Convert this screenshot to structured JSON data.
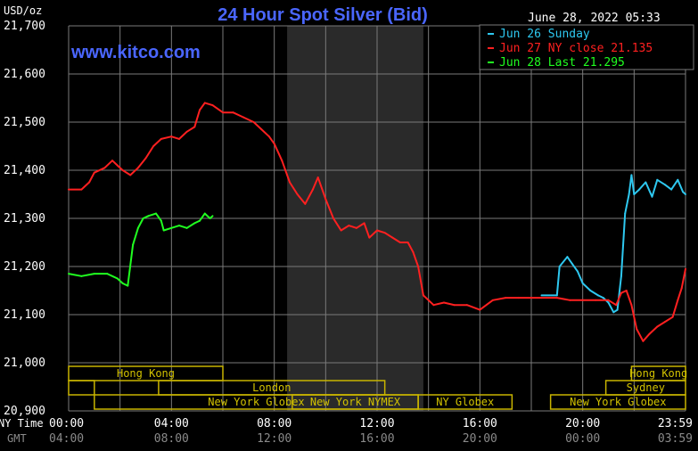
{
  "header": {
    "title": "24 Hour Spot Silver (Bid)",
    "currency_label": "USD/oz",
    "timestamp": "June 28, 2022 05:33",
    "watermark": "www.kitco.com"
  },
  "colors": {
    "background": "#000000",
    "grid": "#7a7a7a",
    "title": "#4a66ff",
    "watermark": "#4a66ff",
    "session_fill": "#c8b400",
    "session_text": "#d2c200",
    "night_band": "#2a2a2a",
    "cyan": "#2ec8f0",
    "red": "#ff2020",
    "green": "#20ff20",
    "axis_text": "#ffffff",
    "gmt_text": "#8a8a8a"
  },
  "legend": {
    "items": [
      {
        "color": "#2ec8f0",
        "label": "Jun 26 Sunday"
      },
      {
        "color": "#ff2020",
        "label": "Jun 27 NY close 21.135"
      },
      {
        "color": "#20ff20",
        "label": "Jun 28 Last 21.295"
      }
    ]
  },
  "sessions": [
    {
      "label": "Hong Kong",
      "start": 0,
      "end": 6,
      "row": 1
    },
    {
      "label": "",
      "start": 0,
      "end": 1,
      "row": 2
    },
    {
      "label": "London",
      "start": 3.5,
      "end": 12.3,
      "row": 2
    },
    {
      "label": "New York Globex",
      "start": 1,
      "end": 13.6,
      "row": 3
    },
    {
      "label": "New York NYMEX",
      "start": 8.7,
      "end": 13.6,
      "row": 3
    },
    {
      "label": "NY Globex",
      "start": 13.6,
      "end": 17.25,
      "row": 3
    },
    {
      "label": "Hong Kong",
      "start": 21.9,
      "end": 24,
      "row": 1
    },
    {
      "label": "Sydney",
      "start": 20.9,
      "end": 24,
      "row": 2
    },
    {
      "label": "New York Globex",
      "start": 18.75,
      "end": 24,
      "row": 3
    }
  ],
  "axis_rows": {
    "ny_label": "NY Time",
    "gmt_label": "GMT",
    "ny_ticks": [
      "00:00",
      "04:00",
      "08:00",
      "12:00",
      "16:00",
      "20:00",
      "23:59"
    ],
    "gmt_ticks": [
      "04:00",
      "08:00",
      "12:00",
      "16:00",
      "20:00",
      "00:00",
      "03:59"
    ]
  },
  "chart_data": {
    "type": "line",
    "title": "24 Hour Spot Silver (Bid)",
    "ylabel": "USD/oz",
    "xlabel": "NY Time",
    "ylim": [
      20900,
      21700
    ],
    "yticks": [
      "21,700",
      "21,600",
      "21,500",
      "21,400",
      "21,300",
      "21,200",
      "21,100",
      "21,000",
      "20,900"
    ],
    "xlim": [
      0,
      24
    ],
    "shaded_band": [
      8.5,
      13.8
    ],
    "legend": "top-right",
    "grid": true,
    "series": [
      {
        "name": "Jun 26 Sunday",
        "color": "#2ec8f0",
        "points": [
          [
            18.4,
            21140
          ],
          [
            19.0,
            21140
          ],
          [
            19.1,
            21200
          ],
          [
            19.4,
            21220
          ],
          [
            19.6,
            21205
          ],
          [
            19.8,
            21190
          ],
          [
            20.0,
            21165
          ],
          [
            20.3,
            21150
          ],
          [
            20.6,
            21140
          ],
          [
            20.8,
            21135
          ],
          [
            21.0,
            21125
          ],
          [
            21.2,
            21105
          ],
          [
            21.35,
            21110
          ],
          [
            21.5,
            21180
          ],
          [
            21.65,
            21310
          ],
          [
            21.8,
            21350
          ],
          [
            21.9,
            21390
          ],
          [
            22.0,
            21350
          ],
          [
            22.2,
            21360
          ],
          [
            22.45,
            21375
          ],
          [
            22.7,
            21345
          ],
          [
            22.9,
            21380
          ],
          [
            23.2,
            21370
          ],
          [
            23.45,
            21360
          ],
          [
            23.7,
            21380
          ],
          [
            23.9,
            21355
          ],
          [
            24.0,
            21350
          ]
        ]
      },
      {
        "name": "Jun 27 NY close 21.135",
        "color": "#ff2020",
        "points": [
          [
            0.0,
            21360
          ],
          [
            0.5,
            21360
          ],
          [
            0.8,
            21375
          ],
          [
            1.0,
            21395
          ],
          [
            1.4,
            21405
          ],
          [
            1.7,
            21420
          ],
          [
            1.9,
            21410
          ],
          [
            2.1,
            21400
          ],
          [
            2.4,
            21390
          ],
          [
            2.7,
            21405
          ],
          [
            3.0,
            21425
          ],
          [
            3.3,
            21450
          ],
          [
            3.6,
            21465
          ],
          [
            4.0,
            21470
          ],
          [
            4.3,
            21465
          ],
          [
            4.6,
            21480
          ],
          [
            4.9,
            21490
          ],
          [
            5.1,
            21525
          ],
          [
            5.3,
            21540
          ],
          [
            5.6,
            21535
          ],
          [
            6.0,
            21520
          ],
          [
            6.4,
            21520
          ],
          [
            6.8,
            21510
          ],
          [
            7.2,
            21500
          ],
          [
            7.5,
            21485
          ],
          [
            7.8,
            21470
          ],
          [
            8.0,
            21455
          ],
          [
            8.3,
            21420
          ],
          [
            8.6,
            21375
          ],
          [
            8.9,
            21350
          ],
          [
            9.2,
            21330
          ],
          [
            9.5,
            21360
          ],
          [
            9.7,
            21385
          ],
          [
            10.0,
            21340
          ],
          [
            10.3,
            21300
          ],
          [
            10.6,
            21275
          ],
          [
            10.9,
            21285
          ],
          [
            11.2,
            21280
          ],
          [
            11.5,
            21290
          ],
          [
            11.7,
            21260
          ],
          [
            12.0,
            21275
          ],
          [
            12.3,
            21270
          ],
          [
            12.6,
            21260
          ],
          [
            12.9,
            21250
          ],
          [
            13.2,
            21250
          ],
          [
            13.4,
            21230
          ],
          [
            13.6,
            21200
          ],
          [
            13.8,
            21140
          ],
          [
            14.2,
            21120
          ],
          [
            14.6,
            21125
          ],
          [
            15.0,
            21120
          ],
          [
            15.5,
            21120
          ],
          [
            16.0,
            21110
          ],
          [
            16.5,
            21130
          ],
          [
            17.0,
            21135
          ],
          [
            17.5,
            21135
          ],
          [
            18.0,
            21135
          ],
          [
            18.4,
            21135
          ],
          [
            19.0,
            21135
          ],
          [
            19.5,
            21130
          ],
          [
            20.0,
            21130
          ],
          [
            20.5,
            21130
          ],
          [
            21.0,
            21130
          ],
          [
            21.3,
            21120
          ],
          [
            21.5,
            21145
          ],
          [
            21.7,
            21150
          ],
          [
            21.9,
            21120
          ],
          [
            22.1,
            21070
          ],
          [
            22.35,
            21045
          ],
          [
            22.6,
            21060
          ],
          [
            22.9,
            21075
          ],
          [
            23.2,
            21085
          ],
          [
            23.5,
            21095
          ],
          [
            23.7,
            21130
          ],
          [
            23.85,
            21155
          ],
          [
            24.0,
            21195
          ]
        ]
      },
      {
        "name": "Jun 28 Last 21.295",
        "color": "#20ff20",
        "points": [
          [
            0.0,
            21185
          ],
          [
            0.5,
            21180
          ],
          [
            1.0,
            21185
          ],
          [
            1.5,
            21185
          ],
          [
            1.9,
            21175
          ],
          [
            2.1,
            21165
          ],
          [
            2.3,
            21160
          ],
          [
            2.5,
            21245
          ],
          [
            2.7,
            21280
          ],
          [
            2.9,
            21300
          ],
          [
            3.1,
            21305
          ],
          [
            3.4,
            21310
          ],
          [
            3.6,
            21295
          ],
          [
            3.7,
            21275
          ],
          [
            4.0,
            21280
          ],
          [
            4.3,
            21285
          ],
          [
            4.6,
            21280
          ],
          [
            4.9,
            21290
          ],
          [
            5.1,
            21295
          ],
          [
            5.3,
            21310
          ],
          [
            5.5,
            21300
          ],
          [
            5.6,
            21305
          ]
        ]
      }
    ]
  }
}
